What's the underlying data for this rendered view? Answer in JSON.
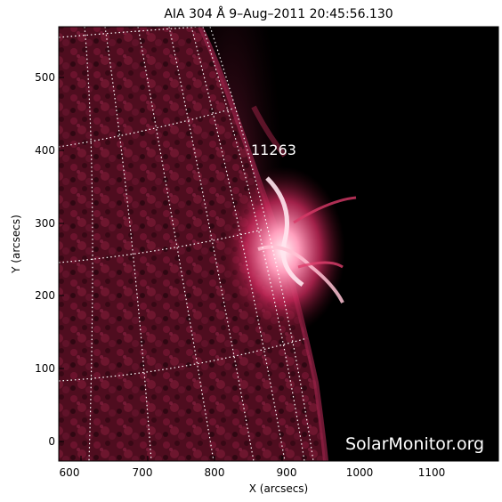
{
  "image": {
    "title": "AIA 304 Å  9–Aug–2011 20:45:56.130",
    "x_axis_label": "X (arcsecs)",
    "y_axis_label": "Y (arcsecs)",
    "x_ticks": [
      "600",
      "700",
      "800",
      "900",
      "1000",
      "1100"
    ],
    "y_ticks": [
      "0",
      "100",
      "200",
      "300",
      "400",
      "500"
    ],
    "active_region_label": "11263",
    "watermark": "SolarMonitor.org",
    "colors": {
      "background_sky": "#000000",
      "solar_disk": "#5a0f24",
      "flare_core": "#ffe6ee",
      "flare_glow": "#e0406e",
      "grid_lines": "#ffffff",
      "frame": "#000000"
    }
  }
}
